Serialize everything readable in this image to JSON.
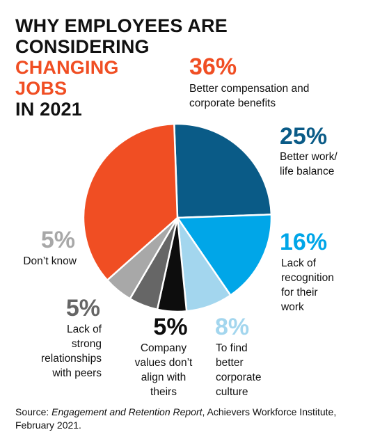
{
  "title": {
    "line1": "WHY EMPLOYEES ARE",
    "line2": "CONSIDERING",
    "line3": "CHANGING",
    "line4": "JOBS",
    "line5": "IN 2021"
  },
  "colors": {
    "accent": "#f04e23",
    "better_compensation": "#f04e23",
    "work_life_balance": "#0a5b87",
    "recognition": "#00a6e8",
    "corporate_culture": "#a3d6ee",
    "company_values": "#0d0d0d",
    "strong_relationships": "#666666",
    "dont_know": "#a8a8a8"
  },
  "chart_data": {
    "type": "pie",
    "slices": [
      {
        "pct_label": "36%",
        "value": 36,
        "label_lines": [
          "Better compensation and",
          "corporate benefits"
        ],
        "color": "#f04e23"
      },
      {
        "pct_label": "25%",
        "value": 25,
        "label_lines": [
          "Better work/",
          "life balance"
        ],
        "color": "#0a5b87"
      },
      {
        "pct_label": "16%",
        "value": 16,
        "label_lines": [
          "Lack of",
          "recognition",
          "for their",
          "work"
        ],
        "color": "#00a6e8"
      },
      {
        "pct_label": "8%",
        "value": 8,
        "label_lines": [
          "To find",
          "better",
          "corporate",
          "culture"
        ],
        "color": "#a3d6ee"
      },
      {
        "pct_label": "5%",
        "value": 5,
        "label_lines": [
          "Company",
          "values don’t",
          "align with",
          "theirs"
        ],
        "color": "#0d0d0d"
      },
      {
        "pct_label": "5%",
        "value": 5,
        "label_lines": [
          "Lack of",
          "strong",
          "relationships",
          "with peers"
        ],
        "color": "#666666"
      },
      {
        "pct_label": "5%",
        "value": 5,
        "label_lines": [
          "Don’t know"
        ],
        "color": "#a8a8a8"
      }
    ]
  },
  "source": {
    "prefix": "Source: ",
    "report": "Engagement and Retention Report",
    "suffix": ", Achievers Workforce Institute, February 2021."
  }
}
